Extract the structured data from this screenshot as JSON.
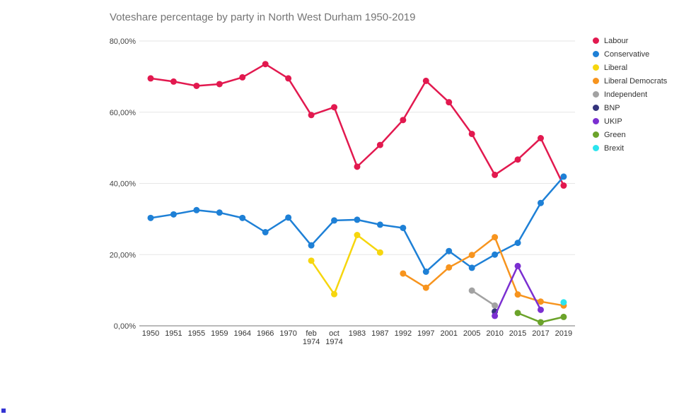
{
  "chart_data": {
    "type": "line",
    "title": "Voteshare percentage by party in North West Durham 1950-2019",
    "xlabel": "",
    "ylabel": "",
    "ylim": [
      0,
      80
    ],
    "grid": true,
    "legend_position": "right",
    "y_ticks": [
      {
        "value": 80,
        "label": "80,00%"
      },
      {
        "value": 60,
        "label": "60,00%"
      },
      {
        "value": 40,
        "label": "40,00%"
      },
      {
        "value": 20,
        "label": "20,00%"
      },
      {
        "value": 0,
        "label": "0,00%"
      }
    ],
    "categories": [
      "1950",
      "1951",
      "1955",
      "1959",
      "1964",
      "1966",
      "1970",
      "feb 1974",
      "oct 1974",
      "1983",
      "1987",
      "1992",
      "1997",
      "2001",
      "2005",
      "2010",
      "2015",
      "2017",
      "2019"
    ],
    "series": [
      {
        "name": "Labour",
        "color": "#e2194f",
        "values": [
          69.5,
          68.6,
          67.4,
          67.9,
          69.8,
          73.5,
          69.5,
          59.2,
          61.4,
          44.7,
          50.8,
          57.8,
          68.8,
          62.8,
          53.9,
          42.4,
          46.7,
          52.7,
          39.4
        ]
      },
      {
        "name": "Conservative",
        "color": "#1e80d6",
        "values": [
          30.3,
          31.3,
          32.5,
          31.8,
          30.3,
          26.3,
          30.4,
          22.6,
          29.6,
          29.8,
          28.4,
          27.5,
          15.2,
          21.0,
          16.3,
          20.0,
          23.3,
          34.5,
          41.9
        ]
      },
      {
        "name": "Liberal",
        "color": "#f6d60e",
        "values": [
          null,
          null,
          null,
          null,
          null,
          null,
          null,
          18.3,
          8.9,
          25.5,
          20.6,
          null,
          null,
          null,
          null,
          null,
          null,
          null,
          null
        ]
      },
      {
        "name": "Liberal Democrats",
        "color": "#f7941e",
        "values": [
          null,
          null,
          null,
          null,
          null,
          null,
          null,
          null,
          null,
          null,
          null,
          14.7,
          10.7,
          16.4,
          19.9,
          24.9,
          8.8,
          6.8,
          5.7
        ]
      },
      {
        "name": "Independent",
        "color": "#a2a2a2",
        "values": [
          null,
          null,
          null,
          null,
          null,
          null,
          null,
          null,
          null,
          null,
          null,
          null,
          null,
          null,
          9.9,
          5.7,
          null,
          null,
          null
        ]
      },
      {
        "name": "BNP",
        "color": "#34347c",
        "values": [
          null,
          null,
          null,
          null,
          null,
          null,
          null,
          null,
          null,
          null,
          null,
          null,
          null,
          null,
          null,
          4.0,
          null,
          null,
          null
        ]
      },
      {
        "name": "UKIP",
        "color": "#7b2fd1",
        "values": [
          null,
          null,
          null,
          null,
          null,
          null,
          null,
          null,
          null,
          null,
          null,
          null,
          null,
          null,
          null,
          2.8,
          16.8,
          4.5,
          null
        ]
      },
      {
        "name": "Green",
        "color": "#6ba32a",
        "values": [
          null,
          null,
          null,
          null,
          null,
          null,
          null,
          null,
          null,
          null,
          null,
          null,
          null,
          null,
          null,
          null,
          3.6,
          1.0,
          2.5
        ]
      },
      {
        "name": "Brexit",
        "color": "#2be4ee",
        "values": [
          null,
          null,
          null,
          null,
          null,
          null,
          null,
          null,
          null,
          null,
          null,
          null,
          null,
          null,
          null,
          null,
          null,
          null,
          6.6
        ]
      }
    ]
  },
  "artifact": {
    "color": "#3434d2"
  }
}
